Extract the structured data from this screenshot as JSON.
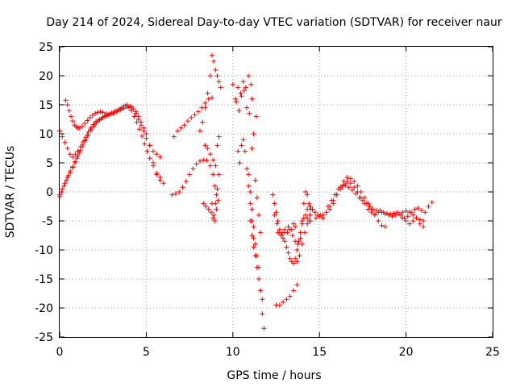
{
  "chart_data": {
    "type": "scatter",
    "title": "Day 214 of 2024, Sidereal Day-to-day VTEC variation (SDTVAR) for receiver naur",
    "xlabel": "GPS time / hours",
    "ylabel": "SDTVAR / TECUs",
    "xlim": [
      0,
      25
    ],
    "ylim": [
      -25,
      25
    ],
    "xticks": [
      "0",
      "5",
      "10",
      "15",
      "20",
      "25"
    ],
    "yticks": [
      "-25",
      "-20",
      "-15",
      "-10",
      "-5",
      "0",
      "5",
      "10",
      "15",
      "20",
      "25"
    ],
    "grid": true,
    "marker": "+",
    "color": "#ff0000",
    "series": [
      {
        "x": [
          0.0,
          0.15,
          0.3,
          0.45,
          0.6,
          0.75,
          0.9,
          1.05,
          1.2,
          1.35,
          1.5,
          1.65,
          1.8,
          1.95,
          2.1,
          2.3,
          2.5,
          2.7,
          2.9,
          3.1,
          3.3,
          3.5,
          3.7,
          3.9,
          4.1,
          4.25,
          4.4,
          4.55,
          4.7,
          4.85,
          5.0,
          5.2,
          5.4,
          5.6,
          5.8,
          6.0
        ],
        "y": [
          -0.5,
          0.5,
          1.5,
          2.5,
          3.3,
          4.2,
          5.2,
          6.2,
          7.2,
          8.2,
          9.0,
          9.8,
          10.6,
          11.3,
          11.9,
          12.4,
          12.8,
          13.1,
          13.4,
          13.6,
          13.8,
          14.1,
          14.4,
          14.7,
          14.6,
          14.3,
          13.8,
          13.0,
          12.0,
          11.0,
          10.0,
          8.0,
          5.0,
          3.0,
          2.0,
          1.5
        ]
      },
      {
        "x": [
          0.0,
          0.15,
          0.3,
          0.45,
          0.6,
          0.75,
          0.9,
          1.05,
          1.2,
          1.35,
          1.5,
          1.65,
          1.8,
          1.95,
          2.1,
          2.3,
          2.5,
          2.7,
          2.9,
          3.1,
          3.3,
          3.5,
          3.7,
          3.9,
          4.1,
          4.25,
          4.4,
          4.55,
          4.7,
          4.85,
          5.0,
          5.2,
          5.4,
          5.6,
          5.8
        ],
        "y": [
          10.5,
          9.5,
          8.5,
          7.5,
          6.5,
          6.0,
          6.5,
          7.0,
          7.8,
          8.6,
          9.4,
          10.3,
          11.0,
          11.6,
          12.1,
          12.5,
          12.9,
          13.2,
          13.4,
          13.6,
          13.9,
          14.3,
          14.8,
          15.0,
          14.8,
          14.3,
          13.5,
          12.5,
          11.5,
          10.5,
          9.2,
          8.0,
          7.0,
          6.5,
          6.0
        ]
      },
      {
        "x": [
          0.0,
          0.12,
          0.25,
          0.38,
          0.5,
          0.62,
          0.75,
          0.88,
          1.0,
          1.15,
          1.3,
          1.45,
          1.6,
          1.8,
          2.0,
          2.2,
          2.4,
          2.6,
          2.8,
          3.0,
          3.2,
          3.4,
          3.6,
          3.8,
          4.0,
          4.15,
          4.3,
          4.45,
          4.6,
          4.75,
          4.9,
          5.05,
          5.2,
          5.4,
          5.6,
          5.8
        ],
        "y": [
          -0.8,
          0.0,
          1.0,
          2.0,
          2.8,
          3.6,
          4.3,
          5.0,
          5.8,
          6.8,
          7.8,
          8.8,
          9.8,
          10.8,
          11.6,
          12.2,
          12.6,
          13.0,
          13.3,
          13.6,
          13.9,
          14.2,
          14.5,
          14.8,
          14.5,
          14.0,
          13.0,
          12.0,
          10.8,
          9.6,
          8.3,
          7.0,
          5.8,
          4.5,
          3.2,
          2.5
        ]
      },
      {
        "x": [
          0.35,
          0.45,
          0.55,
          0.65,
          0.75,
          0.85,
          0.95,
          1.05,
          1.15,
          1.3,
          1.45,
          1.6,
          1.75,
          1.9,
          2.05,
          2.2,
          2.35,
          2.5,
          2.7,
          2.9,
          3.1,
          3.3,
          3.5
        ],
        "y": [
          15.8,
          15.0,
          14.0,
          13.0,
          12.2,
          11.5,
          11.2,
          11.0,
          11.0,
          11.3,
          11.8,
          12.3,
          12.8,
          13.2,
          13.5,
          13.7,
          13.8,
          13.7,
          13.5,
          13.4,
          13.5,
          13.8,
          14.2
        ]
      },
      {
        "x": [
          6.5,
          6.7,
          6.9,
          7.1,
          7.3,
          7.5,
          7.7,
          7.9,
          8.1,
          8.3,
          8.5,
          8.7,
          8.85,
          8.95,
          9.05,
          9.15
        ],
        "y": [
          -0.5,
          -0.3,
          0.0,
          0.8,
          1.8,
          3.0,
          4.0,
          4.8,
          5.3,
          5.5,
          5.4,
          4.5,
          3.0,
          1.0,
          -0.5,
          -1.5
        ]
      },
      {
        "x": [
          6.6,
          6.8,
          7.0,
          7.2,
          7.4,
          7.6,
          7.8,
          8.0,
          8.2,
          8.4,
          8.6,
          8.8
        ],
        "y": [
          9.5,
          10.5,
          11.0,
          11.5,
          12.2,
          12.8,
          13.3,
          13.8,
          14.5,
          15.3,
          16.0,
          16.2
        ]
      },
      {
        "x": [
          8.1,
          8.25,
          8.4,
          8.55,
          8.7,
          8.8,
          8.9,
          9.0,
          9.1,
          9.2,
          9.3
        ],
        "y": [
          10.5,
          12.0,
          14.5,
          17.0,
          20.0,
          23.5,
          22.5,
          21.0,
          20.0,
          19.0,
          18.0
        ]
      },
      {
        "x": [
          8.3,
          8.45,
          8.6,
          8.75,
          8.85,
          8.95,
          9.05
        ],
        "y": [
          -2.0,
          -2.5,
          -3.0,
          -3.5,
          -4.5,
          -5.0,
          -3.0
        ]
      },
      {
        "x": [
          8.8,
          8.9,
          9.0,
          9.1,
          9.2
        ],
        "y": [
          -2.0,
          -4.0,
          -2.0,
          0.5,
          3.0
        ]
      },
      {
        "x": [
          8.4,
          8.55,
          8.7,
          8.85,
          9.0,
          9.1,
          9.2
        ],
        "y": [
          8.0,
          7.5,
          6.5,
          5.5,
          4.5,
          8.0,
          9.5
        ]
      },
      {
        "x": [
          10.0,
          10.15,
          10.3,
          10.45,
          10.6,
          10.75,
          10.9,
          11.05
        ],
        "y": [
          18.5,
          16.0,
          18.0,
          17.0,
          19.0,
          18.0,
          20.0,
          18.5
        ]
      },
      {
        "x": [
          10.2,
          10.35,
          10.5,
          10.65,
          10.8,
          10.95,
          11.1
        ],
        "y": [
          15.5,
          14.0,
          16.5,
          17.5,
          14.5,
          13.5,
          16.0
        ]
      },
      {
        "x": [
          10.3,
          10.4,
          10.5,
          10.6,
          10.7,
          10.8,
          10.9,
          11.0,
          11.1,
          11.2,
          11.3,
          11.4,
          11.5,
          11.6,
          11.7,
          11.8
        ],
        "y": [
          7.0,
          5.0,
          8.0,
          9.0,
          7.0,
          4.0,
          1.0,
          -2.0,
          -5.0,
          -8.0,
          -11.0,
          -13.0,
          -15.0,
          -17.0,
          -21.0,
          -23.5
        ]
      },
      {
        "x": [
          10.9,
          11.0,
          11.1,
          11.2,
          11.3,
          11.4,
          11.5
        ],
        "y": [
          3.0,
          0.0,
          -3.0,
          -6.0,
          -9.0,
          -11.0,
          -13.0
        ]
      },
      {
        "x": [
          11.0,
          11.1,
          11.2,
          11.3,
          11.4,
          11.5,
          11.6,
          11.7
        ],
        "y": [
          -5.0,
          -7.5,
          -9.5,
          -11.0,
          -13.0,
          -15.0,
          -17.0,
          -18.5
        ]
      },
      {
        "x": [
          11.1,
          11.2,
          11.35
        ],
        "y": [
          7.5,
          10.0,
          13.0
        ]
      },
      {
        "x": [
          11.3,
          11.4,
          11.5,
          11.6
        ],
        "y": [
          2.0,
          -1.0,
          -4.0,
          -7.0
        ]
      },
      {
        "x": [
          12.3,
          12.4,
          12.5,
          12.6,
          12.7,
          12.8,
          12.9,
          13.0,
          13.1,
          13.2,
          13.3,
          13.4,
          13.5,
          13.6,
          13.7,
          13.8,
          13.9,
          14.0,
          14.1,
          14.2,
          14.3,
          14.4,
          14.5
        ],
        "y": [
          -0.5,
          -2.0,
          -3.5,
          -5.0,
          -6.5,
          -7.5,
          -8.0,
          -8.5,
          -9.5,
          -10.5,
          -11.5,
          -12.0,
          -12.3,
          -11.5,
          -10.0,
          -8.5,
          -7.0,
          -5.5,
          -4.5,
          -4.0,
          -4.5,
          -5.0,
          -5.0
        ]
      },
      {
        "x": [
          12.4,
          12.55,
          12.7,
          12.85,
          13.0,
          13.15,
          13.3,
          13.45,
          13.6,
          13.75,
          13.9,
          14.0,
          14.1,
          14.2,
          14.3,
          14.4,
          14.5
        ],
        "y": [
          -4.0,
          -5.5,
          -7.0,
          -7.0,
          -6.5,
          -7.0,
          -6.5,
          -7.5,
          -8.5,
          -9.0,
          -8.0,
          -5.0,
          -2.0,
          0.0,
          -0.5,
          -2.0,
          -3.0
        ]
      },
      {
        "x": [
          12.6,
          12.8,
          13.0,
          13.2,
          13.4,
          13.5,
          13.6
        ],
        "y": [
          -7.0,
          -7.5,
          -7.0,
          -6.0,
          -6.5,
          -5.5,
          -6.0
        ]
      },
      {
        "x": [
          12.5,
          12.7,
          12.9,
          13.1,
          13.3,
          13.5,
          13.7
        ],
        "y": [
          -19.5,
          -19.5,
          -19.0,
          -18.5,
          -18.0,
          -17.0,
          -16.0
        ]
      },
      {
        "x": [
          13.7,
          13.85,
          14.0,
          14.15,
          14.3,
          14.45,
          14.6
        ],
        "y": [
          -12.0,
          -11.0,
          -9.0,
          -7.0,
          -5.5,
          -4.0,
          -3.0
        ]
      },
      {
        "x": [
          14.3,
          14.45,
          14.6,
          14.75,
          14.9,
          15.05,
          15.2
        ],
        "y": [
          -3.0,
          -2.5,
          -3.0,
          -3.5,
          -4.0,
          -4.0,
          -4.5
        ]
      },
      {
        "x": [
          14.8,
          15.0,
          15.2,
          15.4,
          15.6,
          15.8,
          16.0,
          16.2,
          16.4,
          16.6,
          16.8,
          17.0,
          17.2,
          17.4,
          17.6,
          17.8,
          18.0,
          18.2,
          18.4,
          18.6,
          18.8,
          19.0,
          19.2,
          19.4,
          19.6,
          19.8,
          20.0,
          20.2,
          20.4,
          20.6,
          20.8,
          21.0
        ],
        "y": [
          -4.5,
          -4.2,
          -4.0,
          -3.5,
          -2.5,
          -1.5,
          -0.5,
          0.5,
          1.2,
          1.8,
          1.5,
          0.8,
          0.0,
          -1.0,
          -2.0,
          -3.0,
          -3.5,
          -3.8,
          -3.5,
          -3.5,
          -3.8,
          -4.0,
          -4.2,
          -4.0,
          -3.8,
          -3.5,
          -3.3,
          -3.5,
          -4.0,
          -4.5,
          -4.8,
          -5.0
        ]
      },
      {
        "x": [
          15.6,
          15.8,
          16.0,
          16.2,
          16.4,
          16.6,
          16.8,
          17.0,
          17.2,
          17.4,
          17.6,
          17.8,
          18.0,
          18.2,
          18.4,
          18.6,
          18.8
        ],
        "y": [
          -3.0,
          -2.0,
          -0.5,
          0.8,
          1.8,
          2.5,
          2.3,
          1.8,
          1.0,
          0.0,
          -1.0,
          -2.0,
          -3.0,
          -4.0,
          -5.0,
          -5.8,
          -6.0
        ]
      },
      {
        "x": [
          15.5,
          15.7,
          15.9,
          16.1,
          16.3,
          16.5,
          16.7,
          16.9,
          17.1,
          17.3,
          17.5,
          17.7,
          17.9,
          18.1,
          18.3,
          18.5,
          18.7,
          18.9,
          19.1,
          19.3,
          19.5,
          19.7,
          19.9,
          20.1,
          20.3,
          20.5,
          20.7,
          20.9,
          21.1,
          21.3,
          21.5
        ],
        "y": [
          -2.5,
          -1.5,
          -0.5,
          0.5,
          1.0,
          1.2,
          0.8,
          0.3,
          -0.3,
          -1.0,
          -1.5,
          -2.0,
          -2.5,
          -3.0,
          -3.2,
          -3.2,
          -3.5,
          -3.7,
          -3.8,
          -3.7,
          -3.5,
          -4.0,
          -4.5,
          -4.2,
          -3.5,
          -3.0,
          -2.8,
          -3.2,
          -3.5,
          -2.5,
          -1.8
        ]
      },
      {
        "x": [
          19.8,
          20.0,
          20.2,
          20.4,
          20.6,
          20.8,
          21.0
        ],
        "y": [
          -4.5,
          -5.0,
          -5.5,
          -5.0,
          -4.5,
          -5.5,
          -6.0
        ]
      }
    ]
  }
}
